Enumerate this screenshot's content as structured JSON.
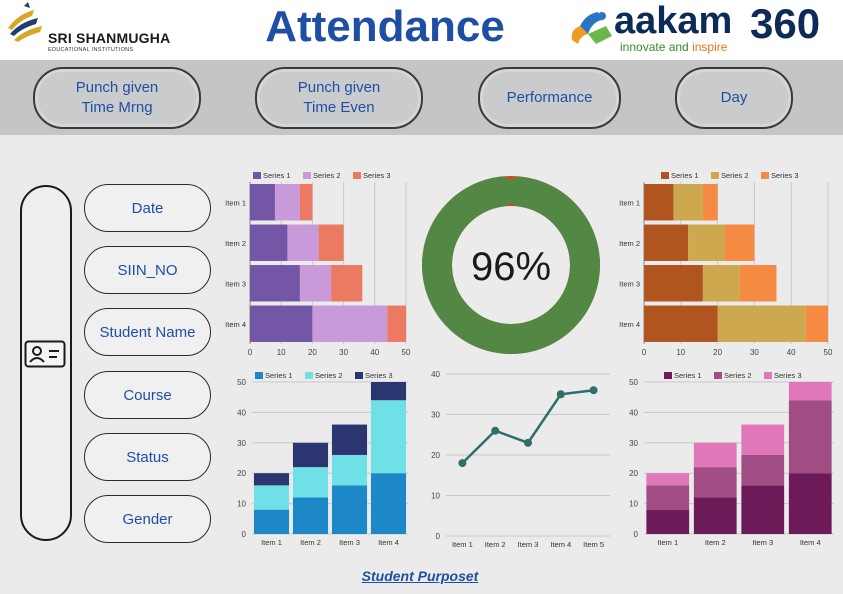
{
  "header": {
    "logo_left_name": "SRI SHANMUGHA",
    "logo_left_sub": "EDUCATIONAL INSTITUTIONS",
    "title": "Attendance",
    "logo_right_brand_a": "aakam",
    "logo_right_brand_b": "360",
    "logo_right_tag_a": "innovate",
    "logo_right_tag_b": " and ",
    "logo_right_tag_c": "inspire"
  },
  "nav": {
    "buttons": [
      "Punch given\nTime Mrng",
      "Punch given\nTime Even",
      "Performance",
      "Day"
    ]
  },
  "filters": [
    "Date",
    "SIIN_NO",
    "Student Name",
    "Course",
    "Status",
    "Gender"
  ],
  "footer": {
    "link": "Student Purposet"
  },
  "colors": {
    "title_blue": "#1f4fa3",
    "gauge_green": "#528843",
    "gauge_red": "#e2401d"
  },
  "chart_data": [
    {
      "id": "hbar-left",
      "type": "bar",
      "orientation": "horizontal",
      "stacked": true,
      "categories": [
        "Item 1",
        "Item 2",
        "Item 3",
        "Item 4"
      ],
      "series": [
        {
          "name": "Series 1",
          "values": [
            8,
            12,
            16,
            20
          ],
          "color": "#7356a6"
        },
        {
          "name": "Series 2",
          "values": [
            8,
            10,
            10,
            24
          ],
          "color": "#c99ad9"
        },
        {
          "name": "Series 3",
          "values": [
            4,
            8,
            10,
            6
          ],
          "color": "#ec7a63"
        }
      ],
      "xlim": [
        0,
        50
      ],
      "xticks": [
        0,
        10,
        20,
        30,
        40,
        50
      ],
      "legend": "top",
      "grid": true
    },
    {
      "id": "donut",
      "type": "pie",
      "donut": true,
      "values": [
        96,
        4
      ],
      "colors": [
        "#528843",
        "#e2401d"
      ],
      "center_label": "96%"
    },
    {
      "id": "hbar-right",
      "type": "bar",
      "orientation": "horizontal",
      "stacked": true,
      "categories": [
        "Item 1",
        "Item 2",
        "Item 3",
        "Item 4"
      ],
      "series": [
        {
          "name": "Series 1",
          "values": [
            8,
            12,
            16,
            20
          ],
          "color": "#b05420"
        },
        {
          "name": "Series 2",
          "values": [
            8,
            10,
            10,
            24
          ],
          "color": "#cda84f"
        },
        {
          "name": "Series 3",
          "values": [
            4,
            8,
            10,
            6
          ],
          "color": "#f58b43"
        }
      ],
      "xlim": [
        0,
        50
      ],
      "xticks": [
        0,
        10,
        20,
        30,
        40,
        50
      ],
      "legend": "top",
      "grid": true
    },
    {
      "id": "vbar-left",
      "type": "bar",
      "orientation": "vertical",
      "stacked": true,
      "categories": [
        "Item 1",
        "Item 2",
        "Item 3",
        "Item 4"
      ],
      "series": [
        {
          "name": "Series 1",
          "values": [
            8,
            12,
            16,
            20
          ],
          "color": "#1d88c7"
        },
        {
          "name": "Series 2",
          "values": [
            8,
            10,
            10,
            24
          ],
          "color": "#6fe0e6"
        },
        {
          "name": "Series 3",
          "values": [
            4,
            8,
            10,
            6
          ],
          "color": "#2b3570"
        }
      ],
      "ylim": [
        0,
        50
      ],
      "yticks": [
        0,
        10,
        20,
        30,
        40,
        50
      ],
      "legend": "top",
      "grid": true
    },
    {
      "id": "line",
      "type": "line",
      "categories": [
        "Item 1",
        "Item 2",
        "Item 3",
        "Item 4",
        "Item 5"
      ],
      "series": [
        {
          "values": [
            18,
            26,
            23,
            35,
            36
          ],
          "color": "#2f6e6a"
        }
      ],
      "ylim": [
        0,
        40
      ],
      "yticks": [
        0,
        10,
        20,
        30,
        40
      ],
      "grid": true
    },
    {
      "id": "vbar-right",
      "type": "bar",
      "orientation": "vertical",
      "stacked": true,
      "categories": [
        "Item 1",
        "Item 2",
        "Item 3",
        "Item 4"
      ],
      "series": [
        {
          "name": "Series 1",
          "values": [
            8,
            12,
            16,
            20
          ],
          "color": "#6c1a58"
        },
        {
          "name": "Series 2",
          "values": [
            8,
            10,
            10,
            24
          ],
          "color": "#a14c83"
        },
        {
          "name": "Series 3",
          "values": [
            4,
            8,
            10,
            6
          ],
          "color": "#e077b9"
        }
      ],
      "ylim": [
        0,
        50
      ],
      "yticks": [
        0,
        10,
        20,
        30,
        40,
        50
      ],
      "legend": "top",
      "grid": true
    }
  ]
}
